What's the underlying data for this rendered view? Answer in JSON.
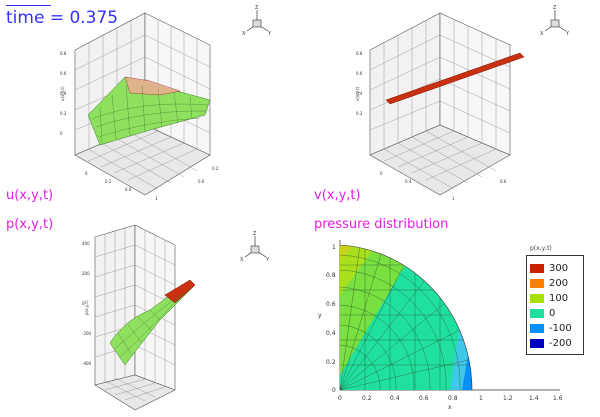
{
  "header": {
    "time_label": "time = 0.375"
  },
  "panels": {
    "u": {
      "label": "u(x,y,t)"
    },
    "v": {
      "label": "v(x,y,t)"
    },
    "p": {
      "label": "p(x,y,t)"
    },
    "pressure": {
      "label": "pressure distribution",
      "legend_title": "p(x,y,t)",
      "legend": [
        {
          "value": "300",
          "color": "#cc2000"
        },
        {
          "value": "200",
          "color": "#ff8000"
        },
        {
          "value": "100",
          "color": "#a8e000"
        },
        {
          "value": "0",
          "color": "#20e0a0"
        },
        {
          "value": "-100",
          "color": "#0090ff"
        },
        {
          "value": "-200",
          "color": "#0000c0"
        }
      ],
      "x_ticks": [
        "0",
        "0.2",
        "0.4",
        "0.6",
        "0.8",
        "1",
        "1.2",
        "1.4",
        "1.6"
      ],
      "y_ticks": [
        "0",
        "0.2",
        "0.4",
        "0.6",
        "0.8",
        "1"
      ],
      "x_label": "x",
      "y_label": "y"
    }
  },
  "triad": {
    "z": "Z",
    "x": "X",
    "y": "Y"
  },
  "colors": {
    "time": "#3232ff",
    "labels": "#e020e0",
    "surface_green": "#90e060",
    "surface_red": "#c83010"
  }
}
